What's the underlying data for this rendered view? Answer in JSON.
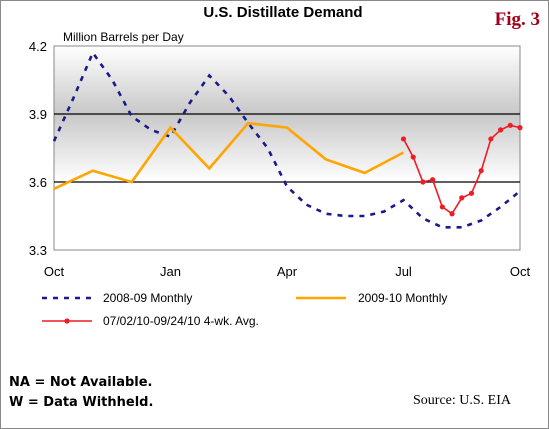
{
  "figure_label": "Fig. 3",
  "notes": [
    "NA = Not Available.",
    "W = Data Withheld."
  ],
  "source": "Source:  U.S. EIA",
  "chart_data": {
    "type": "line",
    "title": "U.S. Distillate Demand",
    "ylabel": "Million Barrels per Day",
    "xlabel": "",
    "ylim": [
      3.3,
      4.2
    ],
    "yticks": [
      3.3,
      3.6,
      3.9,
      4.2
    ],
    "yticklabels": [
      "3.3",
      "3.6",
      "3.9",
      "4.2"
    ],
    "xlim": [
      0,
      12
    ],
    "xticks": [
      0,
      3,
      6,
      9,
      12
    ],
    "xticklabels": [
      "Oct",
      "Jan",
      "Apr",
      "Jul",
      "Oct"
    ],
    "bands": {
      "light": [
        3.3,
        3.6
      ],
      "gradient": [
        3.6,
        4.2
      ],
      "rules": [
        3.6,
        3.9
      ]
    },
    "legend_position": "bottom",
    "series": [
      {
        "name": "2008-09 Monthly",
        "color": "#1a1a8c",
        "style": "dashed",
        "x": [
          0,
          0.5,
          1,
          1.5,
          2,
          2.5,
          3,
          3.5,
          4,
          4.5,
          5,
          5.5,
          6,
          6.5,
          7,
          7.5,
          8,
          8.5,
          9,
          9.5,
          10,
          10.5,
          11,
          11.5,
          12
        ],
        "y": [
          3.78,
          3.97,
          4.17,
          4.05,
          3.89,
          3.83,
          3.8,
          3.95,
          4.07,
          3.98,
          3.86,
          3.75,
          3.58,
          3.5,
          3.46,
          3.45,
          3.45,
          3.47,
          3.52,
          3.44,
          3.4,
          3.4,
          3.43,
          3.49,
          3.56
        ]
      },
      {
        "name": "2009-10 Monthly",
        "color": "#ffa500",
        "style": "solid",
        "x": [
          0,
          1,
          2,
          3,
          4,
          5,
          6,
          7,
          8,
          9
        ],
        "y": [
          3.57,
          3.65,
          3.6,
          3.84,
          3.66,
          3.86,
          3.84,
          3.7,
          3.64,
          3.73
        ]
      },
      {
        "name": "07/02/10-09/24/10  4-wk. Avg.",
        "color": "#ee1c24",
        "style": "solid-markers",
        "x": [
          9.0,
          9.25,
          9.5,
          9.75,
          10.0,
          10.25,
          10.5,
          10.75,
          11.0,
          11.25,
          11.5,
          11.75,
          12.0
        ],
        "y": [
          3.79,
          3.71,
          3.6,
          3.61,
          3.49,
          3.46,
          3.53,
          3.55,
          3.65,
          3.79,
          3.83,
          3.85,
          3.84
        ]
      }
    ]
  }
}
